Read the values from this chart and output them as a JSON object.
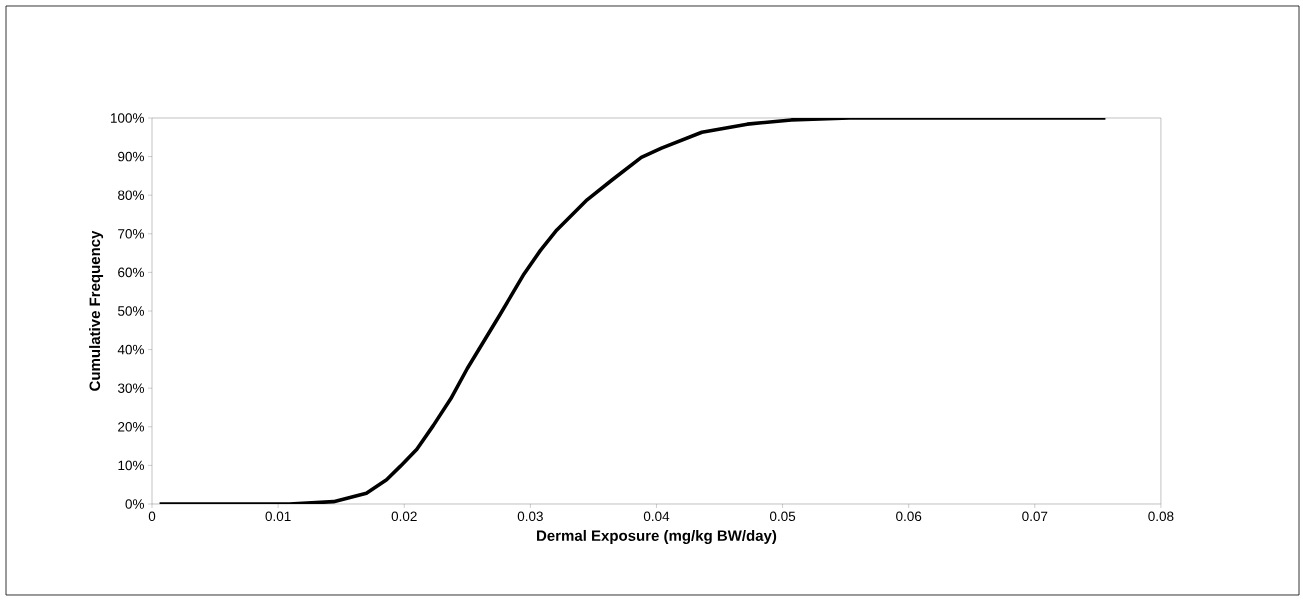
{
  "chart_data": {
    "type": "line",
    "xlabel": "Dermal Exposure (mg/kg BW/day)",
    "ylabel": "Cumulative Frequency",
    "xlim": [
      0,
      0.08
    ],
    "xticks": [
      0,
      0.01,
      0.02,
      0.03,
      0.04,
      0.05,
      0.06,
      0.07,
      0.08
    ],
    "ylim": [
      0,
      100
    ],
    "yticks": [
      {
        "value": 0,
        "label": "0%"
      },
      {
        "value": 10,
        "label": "10%"
      },
      {
        "value": 20,
        "label": "20%"
      },
      {
        "value": 30,
        "label": "30%"
      },
      {
        "value": 40,
        "label": "40%"
      },
      {
        "value": 50,
        "label": "50%"
      },
      {
        "value": 60,
        "label": "60%"
      },
      {
        "value": 70,
        "label": "70%"
      },
      {
        "value": 80,
        "label": "80%"
      },
      {
        "value": 90,
        "label": "90%"
      },
      {
        "value": 100,
        "label": "100%"
      }
    ],
    "series": [
      {
        "color": "#000000",
        "x": [
          0.0006,
          0.0051,
          0.0109,
          0.0144,
          0.017,
          0.0186,
          0.0197,
          0.021,
          0.0223,
          0.0237,
          0.025,
          0.0263,
          0.0276,
          0.0295,
          0.0308,
          0.0321,
          0.0345,
          0.0365,
          0.0388,
          0.0404,
          0.0436,
          0.0472,
          0.0507,
          0.0553,
          0.0756
        ],
        "values": [
          0,
          0,
          0,
          0.6,
          2.8,
          6.3,
          9.8,
          14.2,
          20.3,
          27.3,
          35.1,
          42.1,
          49.1,
          59.6,
          65.7,
          71.0,
          78.8,
          84.0,
          89.8,
          92.2,
          96.3,
          98.4,
          99.5,
          100,
          100
        ]
      }
    ],
    "grid": false,
    "marker": "none",
    "line_style": "solid"
  }
}
